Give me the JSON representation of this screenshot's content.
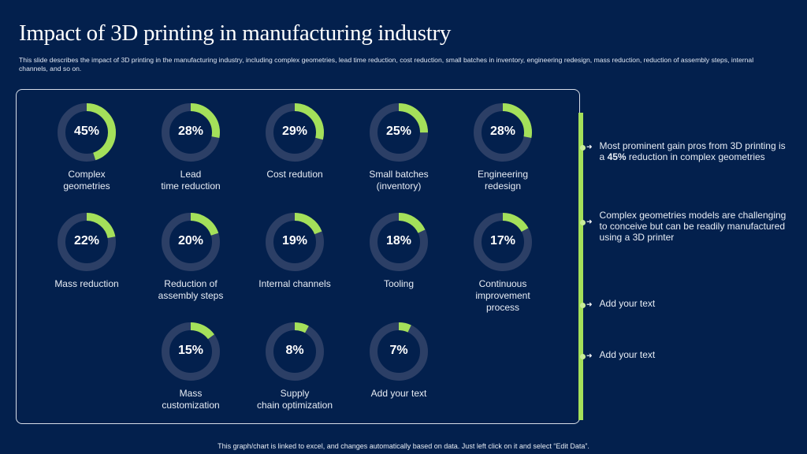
{
  "title": "Impact of 3D printing in manufacturing industry",
  "subtitle": "This slide describes the impact of 3D printing in the manufacturing industry, including complex geometries, lead time reduction, cost reduction, small batches in inventory, engineering redesign, mass reduction, reduction of assembly steps, internal channels, and so on.",
  "colors": {
    "background": "#03204d",
    "accent": "#a4e05a",
    "track": "#2c3f66"
  },
  "chart_data": {
    "type": "pie",
    "subtype": "donut-grid",
    "items": [
      {
        "label": "Complex\ngeometries",
        "value": 45,
        "display": "45%"
      },
      {
        "label": "Lead\ntime reduction",
        "value": 28,
        "display": "28%"
      },
      {
        "label": "Cost redution",
        "value": 29,
        "display": "29%"
      },
      {
        "label": "Small batches\n(inventory)",
        "value": 25,
        "display": "25%"
      },
      {
        "label": "Engineering\nredesign",
        "value": 28,
        "display": "28%"
      },
      {
        "label": "Mass reduction",
        "value": 22,
        "display": "22%"
      },
      {
        "label": "Reduction of\nassembly steps",
        "value": 20,
        "display": "20%"
      },
      {
        "label": "Internal channels",
        "value": 19,
        "display": "19%"
      },
      {
        "label": "Tooling",
        "value": 18,
        "display": "18%"
      },
      {
        "label": "Continuous\nimprovement\nprocess",
        "value": 17,
        "display": "17%"
      },
      {
        "label": "Mass\ncustomization",
        "value": 15,
        "display": "15%"
      },
      {
        "label": "Supply\nchain optimization",
        "value": 8,
        "display": "8%"
      },
      {
        "label": "Add your text",
        "value": 7,
        "display": "7%"
      }
    ]
  },
  "notes": [
    {
      "pre": "Most prominent gain pros from 3D printing is a ",
      "bold": "45%",
      "post": " reduction in complex geometries"
    },
    {
      "pre": "Complex geometries models are challenging to conceive but can be readily manufactured using a 3D printer",
      "bold": "",
      "post": ""
    },
    {
      "pre": "Add your text",
      "bold": "",
      "post": ""
    },
    {
      "pre": "Add your text",
      "bold": "",
      "post": ""
    }
  ],
  "footer": "This graph/chart is linked to excel, and changes automatically based on data. Just left click on it and select “Edit Data”."
}
